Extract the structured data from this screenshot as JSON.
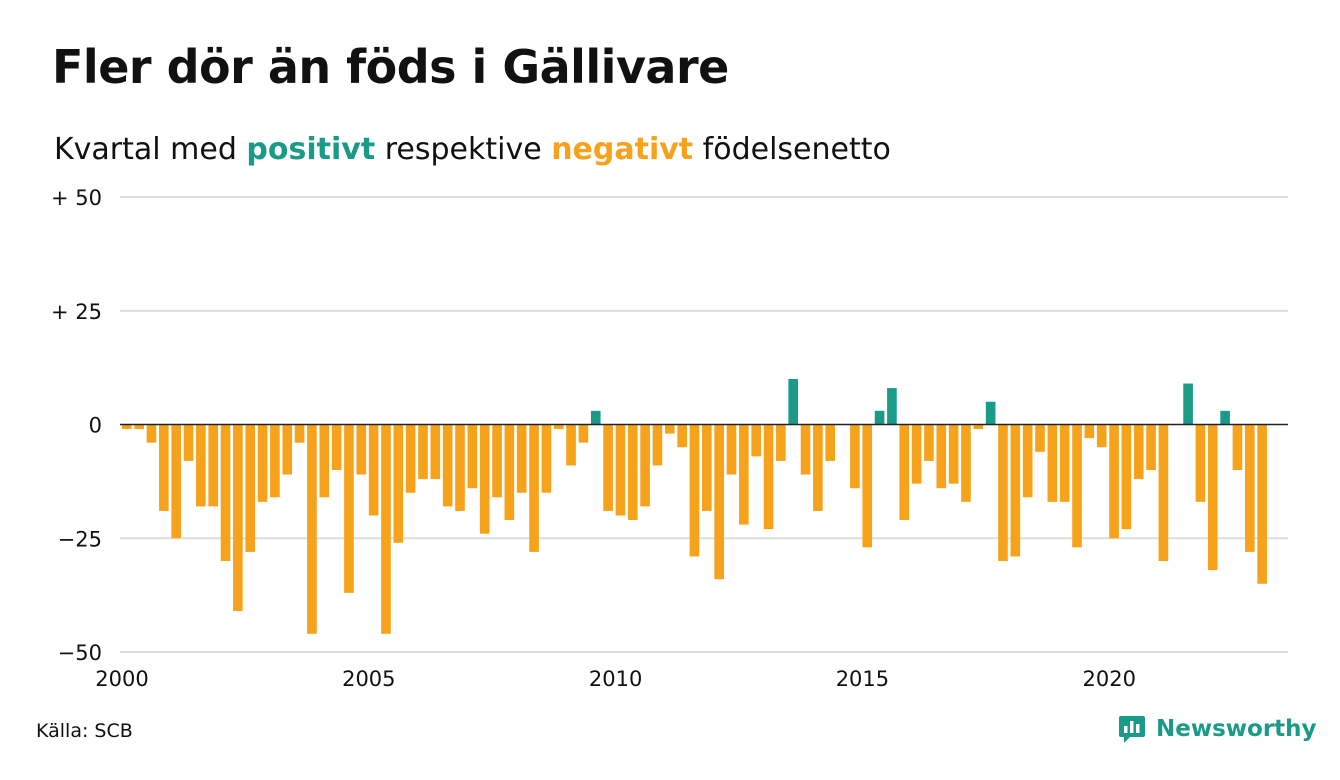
{
  "title": "Fler dör än föds i Gällivare",
  "subtitle": {
    "prefix": "Kvartal med ",
    "positive_word": "positivt",
    "middle": " respektive ",
    "negative_word": "negativt",
    "suffix": " födelsenetto"
  },
  "colors": {
    "positive": "#1a9a88",
    "negative": "#f7a21b",
    "grid": "#dddddd",
    "zero_line": "#222222"
  },
  "source": "Källa: SCB",
  "brand": {
    "name": "Newsworthy",
    "icon": "bar-chart-speech-bubble-icon"
  },
  "chart_data": {
    "type": "bar",
    "y_tick_labels": [
      "+ 50",
      "+ 25",
      "0",
      "−25",
      "−50"
    ],
    "y_ticks": [
      50,
      25,
      0,
      -25,
      -50
    ],
    "ylim": [
      -50,
      50
    ],
    "x_tick_labels": [
      "2000",
      "2005",
      "2010",
      "2015",
      "2020"
    ],
    "x_ticks": [
      2000,
      2005,
      2010,
      2015,
      2020
    ],
    "xlim": [
      2000,
      2023.5
    ],
    "grid": true,
    "x_start": 2000.0,
    "x_step": 0.25,
    "values": [
      -1,
      -1,
      -4,
      -19,
      -25,
      -8,
      -18,
      -18,
      -30,
      -41,
      -28,
      -17,
      -16,
      -11,
      -4,
      -46,
      -16,
      -10,
      -37,
      -11,
      -20,
      -46,
      -26,
      -15,
      -12,
      -12,
      -18,
      -19,
      -14,
      -24,
      -16,
      -21,
      -15,
      -28,
      -15,
      -1,
      -9,
      -4,
      3,
      -19,
      -20,
      -21,
      -18,
      -9,
      -2,
      -5,
      -29,
      -19,
      -34,
      -11,
      -22,
      -7,
      -23,
      -8,
      10,
      -11,
      -19,
      -8,
      0,
      -14,
      -27,
      3,
      8,
      -21,
      -13,
      -8,
      -14,
      -13,
      -17,
      -1,
      5,
      -30,
      -29,
      -16,
      -6,
      -17,
      -17,
      -27,
      -3,
      -5,
      -25,
      -23,
      -12,
      -10,
      -30,
      0,
      9,
      -17,
      -32,
      3,
      -10,
      -28,
      -35
    ]
  }
}
